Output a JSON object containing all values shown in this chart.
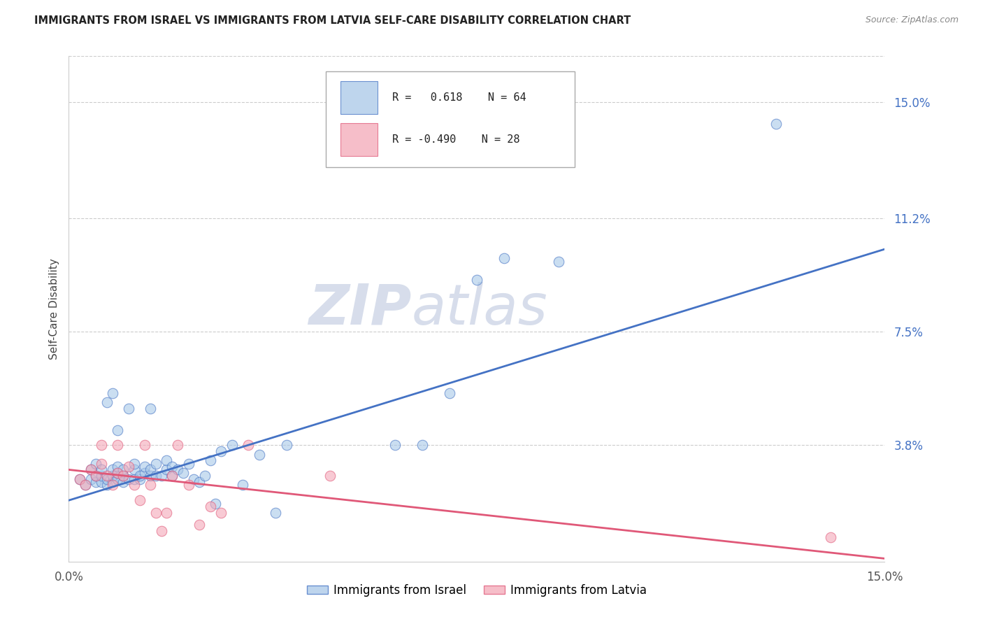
{
  "title": "IMMIGRANTS FROM ISRAEL VS IMMIGRANTS FROM LATVIA SELF-CARE DISABILITY CORRELATION CHART",
  "source": "Source: ZipAtlas.com",
  "ylabel": "Self-Care Disability",
  "ytick_labels": [
    "15.0%",
    "11.2%",
    "7.5%",
    "3.8%"
  ],
  "ytick_values": [
    0.15,
    0.112,
    0.075,
    0.038
  ],
  "xlim": [
    0.0,
    0.15
  ],
  "ylim": [
    0.0,
    0.165
  ],
  "legend_israel_r": "R =   0.618",
  "legend_israel_n": "N = 64",
  "legend_latvia_r": "R = -0.490",
  "legend_latvia_n": "N = 28",
  "color_israel": "#a8c8e8",
  "color_latvia": "#f4a8b8",
  "line_color_israel": "#4472c4",
  "line_color_latvia": "#e05878",
  "israel_scatter_x": [
    0.002,
    0.003,
    0.004,
    0.004,
    0.005,
    0.005,
    0.005,
    0.006,
    0.006,
    0.006,
    0.007,
    0.007,
    0.007,
    0.008,
    0.008,
    0.008,
    0.008,
    0.009,
    0.009,
    0.009,
    0.009,
    0.01,
    0.01,
    0.01,
    0.011,
    0.011,
    0.012,
    0.012,
    0.012,
    0.013,
    0.013,
    0.014,
    0.014,
    0.015,
    0.015,
    0.015,
    0.016,
    0.016,
    0.017,
    0.018,
    0.018,
    0.019,
    0.019,
    0.02,
    0.021,
    0.022,
    0.023,
    0.024,
    0.025,
    0.026,
    0.027,
    0.028,
    0.03,
    0.032,
    0.035,
    0.038,
    0.04,
    0.06,
    0.065,
    0.07,
    0.075,
    0.08,
    0.09,
    0.13
  ],
  "israel_scatter_y": [
    0.027,
    0.025,
    0.027,
    0.03,
    0.026,
    0.028,
    0.032,
    0.026,
    0.028,
    0.03,
    0.025,
    0.027,
    0.052,
    0.026,
    0.028,
    0.03,
    0.055,
    0.027,
    0.029,
    0.031,
    0.043,
    0.026,
    0.028,
    0.03,
    0.027,
    0.05,
    0.027,
    0.03,
    0.032,
    0.027,
    0.028,
    0.029,
    0.031,
    0.028,
    0.03,
    0.05,
    0.028,
    0.032,
    0.028,
    0.03,
    0.033,
    0.028,
    0.031,
    0.03,
    0.029,
    0.032,
    0.027,
    0.026,
    0.028,
    0.033,
    0.019,
    0.036,
    0.038,
    0.025,
    0.035,
    0.016,
    0.038,
    0.038,
    0.038,
    0.055,
    0.092,
    0.099,
    0.098,
    0.143
  ],
  "latvia_scatter_x": [
    0.002,
    0.003,
    0.004,
    0.005,
    0.006,
    0.006,
    0.007,
    0.008,
    0.009,
    0.009,
    0.01,
    0.011,
    0.012,
    0.013,
    0.014,
    0.015,
    0.016,
    0.017,
    0.018,
    0.019,
    0.02,
    0.022,
    0.024,
    0.026,
    0.028,
    0.033,
    0.048,
    0.14
  ],
  "latvia_scatter_y": [
    0.027,
    0.025,
    0.03,
    0.028,
    0.032,
    0.038,
    0.028,
    0.025,
    0.029,
    0.038,
    0.028,
    0.031,
    0.025,
    0.02,
    0.038,
    0.025,
    0.016,
    0.01,
    0.016,
    0.028,
    0.038,
    0.025,
    0.012,
    0.018,
    0.016,
    0.038,
    0.028,
    0.008
  ],
  "israel_line_x": [
    0.0,
    0.15
  ],
  "israel_line_y": [
    0.02,
    0.102
  ],
  "latvia_line_x": [
    0.0,
    0.15
  ],
  "latvia_line_y": [
    0.03,
    0.001
  ]
}
